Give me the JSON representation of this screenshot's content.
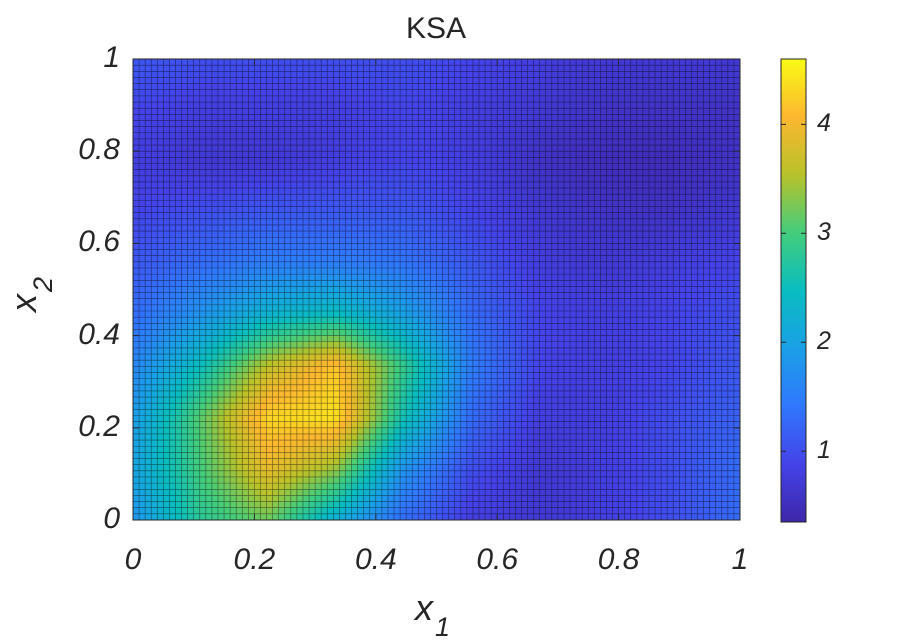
{
  "chart_data": {
    "type": "heatmap",
    "title": "KSA",
    "xlabel": {
      "main": "x",
      "sub": "1"
    },
    "ylabel": {
      "main": "x",
      "sub": "2"
    },
    "xlim": [
      0,
      1
    ],
    "ylim": [
      0,
      1
    ],
    "x_ticks": [
      0,
      0.2,
      0.4,
      0.6,
      0.8,
      1
    ],
    "x_tick_labels": [
      "0",
      "0.2",
      "0.4",
      "0.6",
      "0.8",
      "1"
    ],
    "y_ticks": [
      0,
      0.2,
      0.4,
      0.6,
      0.8,
      1
    ],
    "y_tick_labels": [
      "0",
      "0.2",
      "0.4",
      "0.6",
      "0.8",
      "1"
    ],
    "colorbar": {
      "range": [
        0.35,
        4.6
      ],
      "ticks": [
        1,
        2,
        3,
        4
      ],
      "tick_labels": [
        "1",
        "2",
        "3",
        "4"
      ],
      "colormap": "parula"
    },
    "grid_cells": [
      100,
      75
    ],
    "grid_lines": true,
    "x": [
      0,
      0.111,
      0.222,
      0.333,
      0.444,
      0.556,
      0.667,
      0.778,
      0.889,
      1
    ],
    "y": [
      0,
      0.111,
      0.222,
      0.333,
      0.444,
      0.556,
      0.667,
      0.778,
      0.889,
      1
    ],
    "z": [
      [
        1.8,
        2.8,
        3.2,
        2.2,
        1.3,
        0.8,
        0.7,
        0.8,
        1.0,
        1.3
      ],
      [
        2.0,
        3.0,
        3.9,
        3.4,
        1.8,
        1.0,
        0.7,
        0.8,
        1.0,
        1.3
      ],
      [
        1.9,
        3.1,
        4.3,
        4.4,
        2.6,
        1.3,
        0.8,
        0.8,
        1.0,
        1.2
      ],
      [
        1.6,
        2.5,
        3.6,
        4.2,
        2.9,
        1.5,
        0.9,
        0.8,
        0.9,
        1.1
      ],
      [
        1.3,
        1.8,
        2.3,
        2.5,
        2.0,
        1.3,
        0.9,
        0.8,
        0.9,
        1.0
      ],
      [
        1.1,
        1.3,
        1.5,
        1.5,
        1.4,
        1.1,
        0.8,
        0.7,
        0.8,
        0.9
      ],
      [
        0.9,
        1.0,
        1.1,
        1.1,
        1.1,
        0.9,
        0.7,
        0.6,
        0.6,
        0.7
      ],
      [
        0.8,
        0.7,
        0.7,
        0.8,
        0.9,
        0.8,
        0.6,
        0.5,
        0.5,
        0.6
      ],
      [
        0.9,
        0.8,
        0.8,
        0.8,
        0.9,
        0.8,
        0.7,
        0.6,
        0.6,
        0.6
      ],
      [
        1.1,
        1.0,
        1.0,
        1.0,
        1.0,
        0.9,
        0.8,
        0.7,
        0.7,
        0.7
      ]
    ],
    "z_layout": "z[i][j] is the value at y[i], x[j]"
  }
}
